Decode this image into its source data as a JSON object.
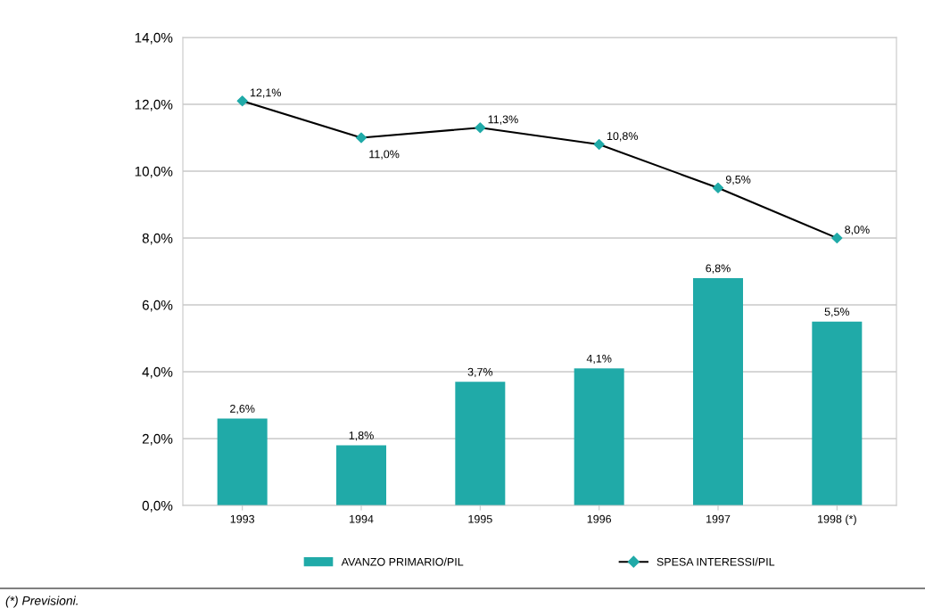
{
  "chart_data": {
    "type": "bar",
    "categories": [
      "1993",
      "1994",
      "1995",
      "1996",
      "1997",
      "1998 (*)"
    ],
    "series": [
      {
        "name": "AVANZO PRIMARIO/PIL",
        "color": "#20aaa8",
        "values": [
          2.6,
          1.8,
          3.7,
          4.1,
          6.8,
          5.5
        ],
        "value_labels": [
          "2,6%",
          "1,8%",
          "3,7%",
          "4,1%",
          "6,8%",
          "5,5%"
        ]
      },
      {
        "name": "SPESA INTERESSI/PIL",
        "type": "line",
        "color": "#000000",
        "colors": [
          "#20aaa8",
          "#20aaa8",
          "#20aaa8",
          "#20aaa8",
          "#20aaa8",
          "#20aaa8"
        ],
        "marker": "diamond",
        "values": [
          12.1,
          11.0,
          11.3,
          10.8,
          9.5,
          8.0
        ],
        "value_labels": [
          "12,1%",
          "11,0%",
          "11,3%",
          "10,8%",
          "9,5%",
          "8,0%"
        ]
      }
    ],
    "ylim": [
      0,
      14
    ],
    "yticks": [
      {
        "value": 0,
        "label": "0,0%"
      },
      {
        "value": 2,
        "label": "2,0%"
      },
      {
        "value": 4,
        "label": "4,0%"
      },
      {
        "value": 6,
        "label": "6,0%"
      },
      {
        "value": 8,
        "label": "8,0%"
      },
      {
        "value": 10,
        "label": "10,0%"
      },
      {
        "value": 12,
        "label": "12,0%"
      },
      {
        "value": 14,
        "label": "14,0%"
      }
    ],
    "grid": "y",
    "legend": "bottom",
    "annotations": [
      "(*) Previsioni."
    ]
  }
}
